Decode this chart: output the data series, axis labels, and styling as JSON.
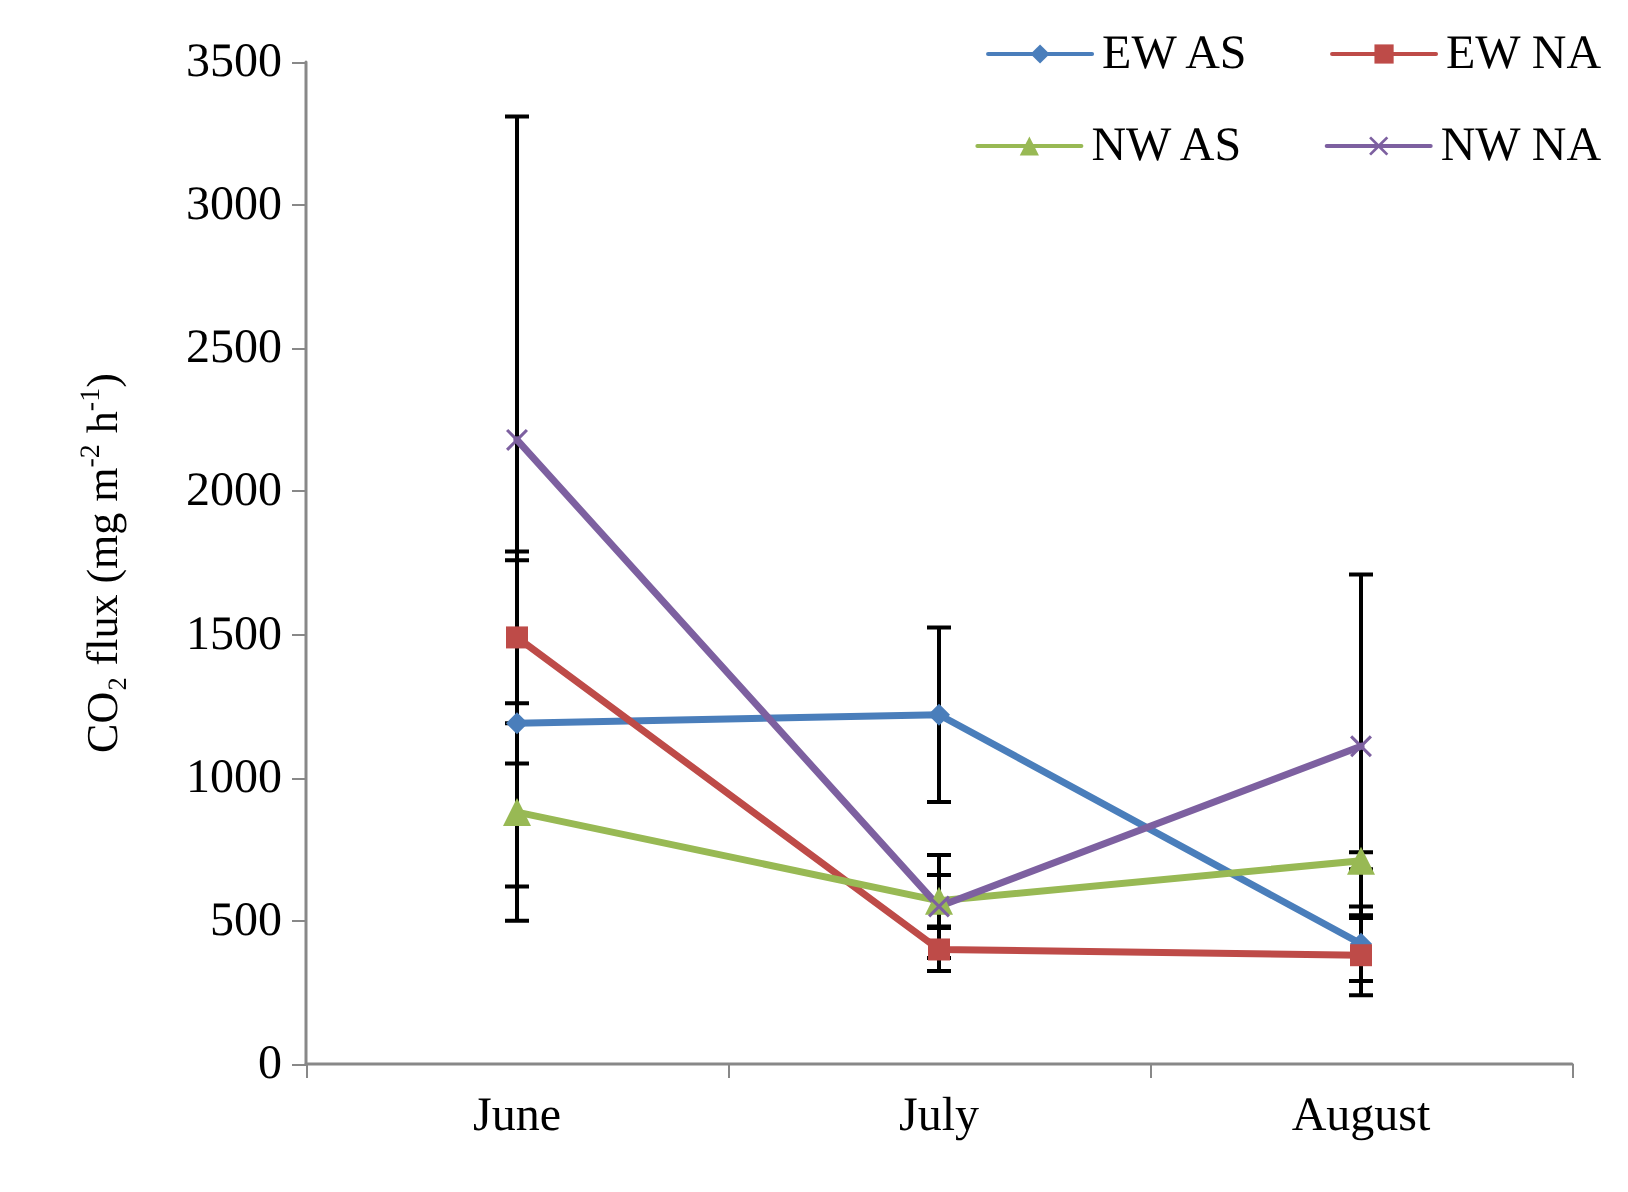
{
  "chart_data": {
    "type": "line",
    "ylabel": "CO₂ flux (mg m$^{-2}$ h$^{-1}$)",
    "categories": [
      "June",
      "July",
      "August"
    ],
    "series": [
      {
        "name": "EW AS",
        "color": "#4a7ebb",
        "marker": "diamond",
        "values": [
          1190,
          1220,
          420
        ],
        "errors": [
          570,
          305,
          130
        ]
      },
      {
        "name": "EW NA",
        "color": "#be4b48",
        "marker": "square",
        "values": [
          1490,
          400,
          380
        ],
        "errors": [
          300,
          75,
          140
        ]
      },
      {
        "name": "NW AS",
        "color": "#98b954",
        "marker": "triangle",
        "values": [
          880,
          570,
          710
        ],
        "errors": [
          380,
          90,
          30
        ]
      },
      {
        "name": "NW NA",
        "color": "#7d60a0",
        "marker": "cross",
        "values": [
          2180,
          550,
          1110
        ],
        "errors": [
          1130,
          180,
          600
        ]
      }
    ],
    "ylim": [
      0,
      3500
    ],
    "yticks": [
      0,
      500,
      1000,
      1500,
      2000,
      2500,
      3000,
      3500
    ],
    "grid": false,
    "legend": "top right"
  }
}
